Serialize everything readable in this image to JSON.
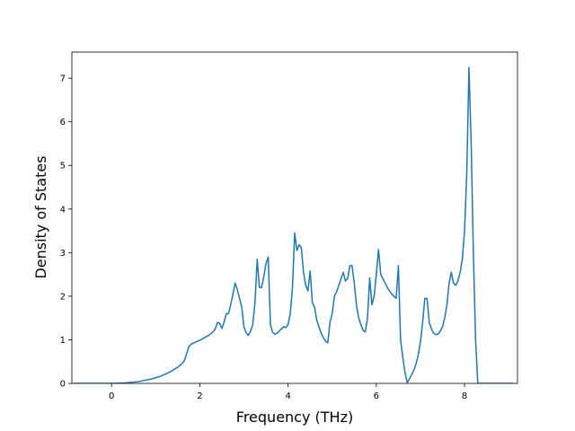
{
  "chart_data": {
    "type": "line",
    "title": "",
    "xlabel": "Frequency (THz)",
    "ylabel": "Density of States",
    "xlim": [
      -0.9,
      9.2
    ],
    "ylim": [
      0,
      7.6
    ],
    "x_ticks": [
      0,
      2,
      4,
      6,
      8
    ],
    "y_ticks": [
      0,
      1,
      2,
      3,
      4,
      5,
      6,
      7
    ],
    "grid": false,
    "legend": "none",
    "colors": {
      "line": "#1f77b4",
      "axes": "#000000",
      "background": "#ffffff"
    },
    "series": [
      {
        "x": [
          -0.85,
          -0.5,
          0.0,
          0.3,
          0.6,
          0.9,
          1.1,
          1.3,
          1.5,
          1.6,
          1.65,
          1.7,
          1.75,
          1.8,
          2.0,
          2.2,
          2.3,
          2.35,
          2.4,
          2.45,
          2.5,
          2.55,
          2.6,
          2.65,
          2.7,
          2.75,
          2.8,
          2.85,
          2.9,
          2.95,
          3.0,
          3.05,
          3.1,
          3.15,
          3.2,
          3.25,
          3.3,
          3.35,
          3.4,
          3.45,
          3.5,
          3.55,
          3.6,
          3.65,
          3.7,
          3.75,
          3.8,
          3.85,
          3.9,
          3.95,
          4.0,
          4.05,
          4.1,
          4.15,
          4.2,
          4.25,
          4.3,
          4.35,
          4.4,
          4.45,
          4.5,
          4.55,
          4.6,
          4.65,
          4.7,
          4.75,
          4.8,
          4.85,
          4.9,
          4.95,
          5.0,
          5.05,
          5.1,
          5.15,
          5.2,
          5.25,
          5.3,
          5.35,
          5.4,
          5.45,
          5.5,
          5.55,
          5.6,
          5.65,
          5.7,
          5.75,
          5.8,
          5.85,
          5.9,
          5.95,
          6.0,
          6.05,
          6.1,
          6.15,
          6.2,
          6.25,
          6.3,
          6.35,
          6.4,
          6.45,
          6.5,
          6.55,
          6.6,
          6.65,
          6.7,
          6.75,
          6.8,
          6.85,
          6.9,
          6.95,
          7.0,
          7.05,
          7.1,
          7.15,
          7.2,
          7.25,
          7.3,
          7.35,
          7.4,
          7.45,
          7.5,
          7.55,
          7.6,
          7.65,
          7.7,
          7.75,
          7.8,
          7.85,
          7.9,
          7.95,
          8.0,
          8.05,
          8.1,
          8.15,
          8.2,
          8.25,
          8.3,
          8.5,
          9.1
        ],
        "y": [
          0,
          0,
          0,
          0.01,
          0.04,
          0.1,
          0.16,
          0.25,
          0.37,
          0.46,
          0.52,
          0.68,
          0.84,
          0.9,
          0.99,
          1.1,
          1.18,
          1.25,
          1.4,
          1.38,
          1.26,
          1.4,
          1.6,
          1.6,
          1.8,
          2.05,
          2.3,
          2.15,
          1.95,
          1.75,
          1.3,
          1.16,
          1.1,
          1.2,
          1.35,
          1.85,
          2.85,
          2.2,
          2.2,
          2.45,
          2.75,
          2.9,
          1.35,
          1.17,
          1.13,
          1.15,
          1.2,
          1.25,
          1.3,
          1.28,
          1.35,
          1.6,
          2.2,
          3.45,
          3.05,
          3.18,
          3.12,
          2.55,
          2.25,
          2.12,
          2.58,
          1.85,
          1.75,
          1.45,
          1.3,
          1.15,
          1.05,
          0.97,
          0.93,
          1.4,
          1.6,
          2.0,
          2.1,
          2.25,
          2.4,
          2.55,
          2.35,
          2.4,
          2.7,
          2.7,
          2.3,
          1.8,
          1.5,
          1.35,
          1.22,
          1.18,
          1.5,
          2.42,
          1.8,
          2.0,
          2.5,
          3.07,
          2.5,
          2.4,
          2.3,
          2.2,
          2.12,
          2.05,
          2.0,
          1.95,
          2.7,
          1.0,
          0.6,
          0.25,
          0.02,
          0.1,
          0.2,
          0.3,
          0.45,
          0.65,
          0.95,
          1.4,
          1.95,
          1.95,
          1.4,
          1.25,
          1.15,
          1.12,
          1.13,
          1.2,
          1.3,
          1.5,
          1.8,
          2.3,
          2.55,
          2.3,
          2.25,
          2.35,
          2.55,
          2.85,
          3.5,
          4.8,
          7.25,
          5.5,
          3.0,
          1.0,
          0.0,
          0.0,
          0.0
        ]
      }
    ]
  }
}
